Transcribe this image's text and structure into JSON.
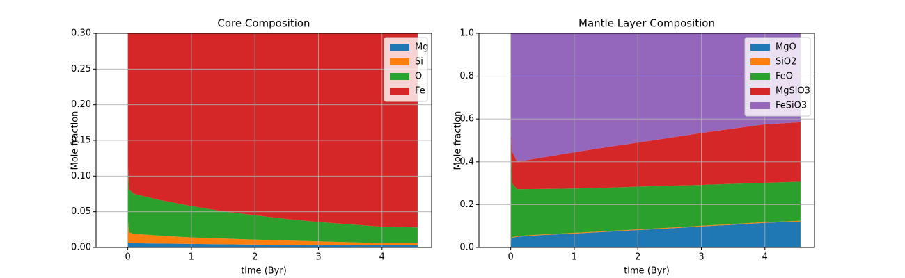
{
  "chart_data": [
    {
      "type": "area",
      "title": "Core Composition",
      "xlabel": "time (Byr)",
      "ylabel": "Mole fraction",
      "x": [
        0,
        0.02,
        0.1,
        0.5,
        1,
        1.5,
        2,
        2.5,
        3,
        3.5,
        4,
        4.56
      ],
      "series": [
        {
          "name": "Mg",
          "color": "#1f77b4",
          "values": [
            0.008,
            0.006,
            0.006,
            0.0055,
            0.005,
            0.0045,
            0.004,
            0.0038,
            0.0035,
            0.0033,
            0.003,
            0.003
          ]
        },
        {
          "name": "Si",
          "color": "#ff7f0e",
          "values": [
            0.03,
            0.015,
            0.013,
            0.011,
            0.009,
            0.008,
            0.007,
            0.006,
            0.005,
            0.004,
            0.003,
            0.003
          ]
        },
        {
          "name": "O",
          "color": "#2ca02c",
          "values": [
            0.08,
            0.06,
            0.056,
            0.05,
            0.044,
            0.038,
            0.034,
            0.03,
            0.027,
            0.025,
            0.023,
            0.022
          ]
        },
        {
          "name": "Fe",
          "color": "#d62728",
          "values": [
            0.882,
            0.919,
            0.925,
            0.9335,
            0.942,
            0.9495,
            0.955,
            0.9602,
            0.9645,
            0.9677,
            0.971,
            0.972
          ]
        }
      ],
      "xlim": [
        -0.5,
        4.78
      ],
      "ylim": [
        0,
        0.3
      ],
      "xticks": [
        0,
        1,
        2,
        3,
        4
      ],
      "yticks": [
        {
          "value": 0,
          "label": "0.00"
        },
        {
          "value": 0.05,
          "label": "0.05"
        },
        {
          "value": 0.1,
          "label": "0.10"
        },
        {
          "value": 0.15,
          "label": "0.15"
        },
        {
          "value": 0.2,
          "label": "0.20"
        },
        {
          "value": 0.25,
          "label": "0.25"
        },
        {
          "value": 0.3,
          "label": "0.30"
        }
      ],
      "grid": true,
      "legend": "upper right"
    },
    {
      "type": "area",
      "title": "Mantle Layer Composition",
      "xlabel": "time (Byr)",
      "ylabel": "Mole fraction",
      "x": [
        0,
        0.02,
        0.1,
        0.5,
        1,
        1.5,
        2,
        2.5,
        3,
        3.5,
        4,
        4.56
      ],
      "series": [
        {
          "name": "MgO",
          "color": "#1f77b4",
          "values": [
            0.03,
            0.045,
            0.05,
            0.058,
            0.065,
            0.073,
            0.081,
            0.089,
            0.098,
            0.106,
            0.115,
            0.121
          ]
        },
        {
          "name": "SiO2",
          "color": "#ff7f0e",
          "values": [
            0.003,
            0.003,
            0.003,
            0.003,
            0.003,
            0.003,
            0.003,
            0.003,
            0.003,
            0.003,
            0.003,
            0.003
          ]
        },
        {
          "name": "FeO",
          "color": "#2ca02c",
          "values": [
            0.517,
            0.252,
            0.219,
            0.212,
            0.207,
            0.203,
            0.2,
            0.196,
            0.191,
            0.188,
            0.184,
            0.183
          ]
        },
        {
          "name": "MgSiO3",
          "color": "#d62728",
          "values": [
            0.01,
            0.15,
            0.128,
            0.147,
            0.17,
            0.189,
            0.206,
            0.224,
            0.243,
            0.258,
            0.273,
            0.278
          ]
        },
        {
          "name": "FeSiO3",
          "color": "#9467bd",
          "values": [
            0.44,
            0.55,
            0.6,
            0.58,
            0.555,
            0.532,
            0.51,
            0.488,
            0.465,
            0.445,
            0.425,
            0.415
          ]
        }
      ],
      "xlim": [
        -0.5,
        4.78
      ],
      "ylim": [
        0,
        1
      ],
      "xticks": [
        0,
        1,
        2,
        3,
        4
      ],
      "yticks": [
        {
          "value": 0,
          "label": "0.0"
        },
        {
          "value": 0.2,
          "label": "0.2"
        },
        {
          "value": 0.4,
          "label": "0.4"
        },
        {
          "value": 0.6,
          "label": "0.6"
        },
        {
          "value": 0.8,
          "label": "0.8"
        },
        {
          "value": 1,
          "label": "1.0"
        }
      ],
      "grid": true,
      "legend": "upper right"
    }
  ]
}
